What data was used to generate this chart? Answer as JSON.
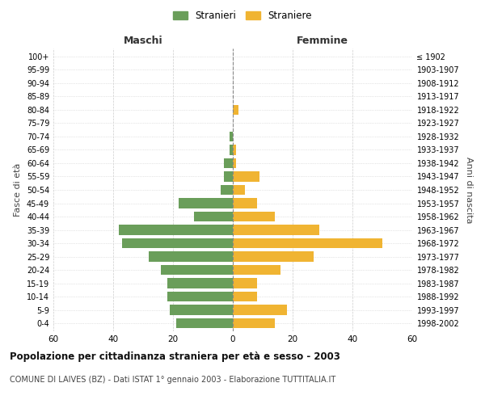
{
  "age_groups": [
    "100+",
    "95-99",
    "90-94",
    "85-89",
    "80-84",
    "75-79",
    "70-74",
    "65-69",
    "60-64",
    "55-59",
    "50-54",
    "45-49",
    "40-44",
    "35-39",
    "30-34",
    "25-29",
    "20-24",
    "15-19",
    "10-14",
    "5-9",
    "0-4"
  ],
  "birth_years": [
    "≤ 1902",
    "1903-1907",
    "1908-1912",
    "1913-1917",
    "1918-1922",
    "1923-1927",
    "1928-1932",
    "1933-1937",
    "1938-1942",
    "1943-1947",
    "1948-1952",
    "1953-1957",
    "1958-1962",
    "1963-1967",
    "1968-1972",
    "1973-1977",
    "1978-1982",
    "1983-1987",
    "1988-1992",
    "1993-1997",
    "1998-2002"
  ],
  "males": [
    0,
    0,
    0,
    0,
    0,
    0,
    1,
    1,
    3,
    3,
    4,
    18,
    13,
    38,
    37,
    28,
    24,
    22,
    22,
    21,
    19
  ],
  "females": [
    0,
    0,
    0,
    0,
    2,
    0,
    0,
    1,
    1,
    9,
    4,
    8,
    14,
    29,
    50,
    27,
    16,
    8,
    8,
    18,
    14
  ],
  "male_color": "#6a9e5a",
  "female_color": "#f0b432",
  "title": "Popolazione per cittadinanza straniera per età e sesso - 2003",
  "subtitle": "COMUNE DI LAIVES (BZ) - Dati ISTAT 1° gennaio 2003 - Elaborazione TUTTITALIA.IT",
  "xlabel_left": "Maschi",
  "xlabel_right": "Femmine",
  "ylabel_left": "Fasce di età",
  "ylabel_right": "Anni di nascita",
  "legend_male": "Stranieri",
  "legend_female": "Straniere",
  "xlim": 60,
  "background_color": "#ffffff",
  "grid_color": "#cccccc"
}
